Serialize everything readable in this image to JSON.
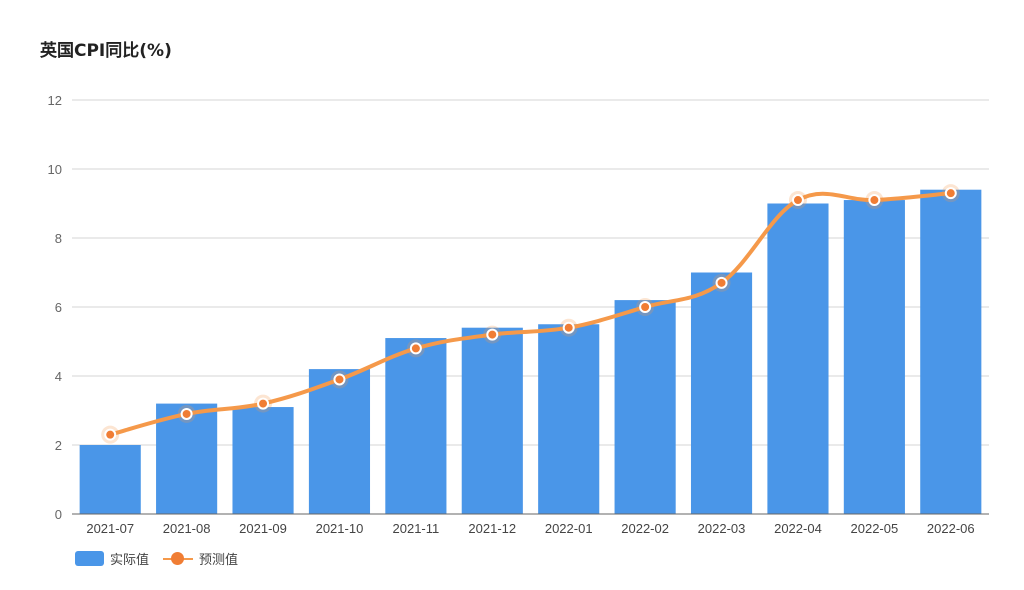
{
  "title": "英国CPI同比(%)",
  "colors": {
    "bar": "#4a96e8",
    "line": "#f5994a",
    "marker": "#f07d34",
    "grid": "#d4d4d4",
    "axis": "#666666"
  },
  "chart_data": {
    "type": "bar",
    "categories": [
      "2021-07",
      "2021-08",
      "2021-09",
      "2021-10",
      "2021-11",
      "2021-12",
      "2022-01",
      "2022-02",
      "2022-03",
      "2022-04",
      "2022-05",
      "2022-06"
    ],
    "series": [
      {
        "name": "实际值",
        "type": "bar",
        "values": [
          2.0,
          3.2,
          3.1,
          4.2,
          5.1,
          5.4,
          5.5,
          6.2,
          7.0,
          9.0,
          9.1,
          9.4
        ]
      },
      {
        "name": "预测值",
        "type": "line",
        "values": [
          2.3,
          2.9,
          3.2,
          3.9,
          4.8,
          5.2,
          5.4,
          6.0,
          6.7,
          9.1,
          9.1,
          9.3
        ]
      }
    ],
    "yticks": [
      "0",
      "2",
      "4",
      "6",
      "8",
      "10",
      "12"
    ],
    "ylim": [
      0,
      12
    ],
    "grid": true,
    "legend": "bottom-left"
  }
}
